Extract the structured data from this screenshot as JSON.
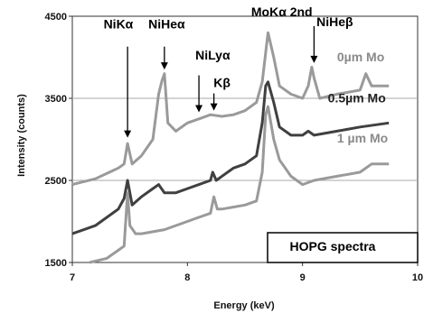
{
  "chart_data": {
    "type": "line",
    "title": "",
    "xlabel": "Energy (keV)",
    "ylabel": "Intensity (counts)",
    "xlim": [
      7,
      10
    ],
    "ylim": [
      1500,
      4500
    ],
    "x_ticks": [
      "7",
      "8",
      "9",
      "10"
    ],
    "y_ticks": [
      "1500",
      "2500",
      "3500",
      "4500"
    ],
    "box_label": "HOPG spectra",
    "series": [
      {
        "name": "0µm Mo",
        "color": "#9a9a9a",
        "x": [
          7.0,
          7.2,
          7.4,
          7.45,
          7.48,
          7.52,
          7.6,
          7.7,
          7.75,
          7.78,
          7.8,
          7.83,
          7.9,
          8.0,
          8.1,
          8.2,
          8.3,
          8.4,
          8.5,
          8.6,
          8.65,
          8.7,
          8.75,
          8.8,
          8.9,
          9.0,
          9.05,
          9.08,
          9.1,
          9.15,
          9.3,
          9.5,
          9.55,
          9.6,
          9.75
        ],
        "y": [
          2450,
          2520,
          2650,
          2700,
          2950,
          2700,
          2800,
          3000,
          3550,
          3720,
          3800,
          3200,
          3100,
          3200,
          3250,
          3300,
          3280,
          3300,
          3350,
          3450,
          3700,
          4300,
          4000,
          3650,
          3550,
          3500,
          3650,
          3880,
          3750,
          3500,
          3550,
          3600,
          3800,
          3650,
          3650
        ]
      },
      {
        "name": "0.5µm Mo",
        "color": "#404040",
        "x": [
          7.0,
          7.2,
          7.4,
          7.45,
          7.48,
          7.52,
          7.6,
          7.7,
          7.75,
          7.8,
          7.9,
          8.0,
          8.1,
          8.2,
          8.22,
          8.25,
          8.3,
          8.4,
          8.5,
          8.6,
          8.65,
          8.68,
          8.7,
          8.75,
          8.8,
          8.9,
          9.0,
          9.05,
          9.1,
          9.3,
          9.5,
          9.75
        ],
        "y": [
          1850,
          1950,
          2150,
          2280,
          2500,
          2200,
          2300,
          2400,
          2450,
          2350,
          2350,
          2400,
          2450,
          2500,
          2600,
          2500,
          2550,
          2650,
          2700,
          2800,
          3200,
          3650,
          3700,
          3450,
          3150,
          3050,
          3050,
          3100,
          3050,
          3100,
          3150,
          3200
        ]
      },
      {
        "name": "1 µm Mo",
        "color": "#9a9a9a",
        "x": [
          7.15,
          7.3,
          7.4,
          7.45,
          7.48,
          7.5,
          7.55,
          7.6,
          7.8,
          8.0,
          8.1,
          8.2,
          8.23,
          8.26,
          8.3,
          8.5,
          8.6,
          8.65,
          8.68,
          8.7,
          8.75,
          8.8,
          8.9,
          9.0,
          9.1,
          9.3,
          9.5,
          9.6,
          9.75
        ],
        "y": [
          1500,
          1550,
          1650,
          1700,
          2350,
          1950,
          1850,
          1850,
          1900,
          2000,
          2050,
          2100,
          2300,
          2150,
          2150,
          2200,
          2250,
          2600,
          3300,
          3400,
          3000,
          2750,
          2550,
          2450,
          2500,
          2550,
          2600,
          2700,
          2700
        ]
      }
    ],
    "annotations": [
      {
        "text": "NiKα",
        "x": 7.48,
        "y": 2990
      },
      {
        "text": "NiHeα",
        "x": 7.8,
        "y": 3850
      },
      {
        "text": "NiLyα",
        "x": 8.1,
        "y": 3290
      },
      {
        "text": "Kβ",
        "x": 8.23,
        "y": 3320
      },
      {
        "text": "MoKα 2nd",
        "x": 8.72,
        "y": 4350
      },
      {
        "text": "NiHeβ",
        "x": 9.1,
        "y": 3920
      }
    ]
  }
}
